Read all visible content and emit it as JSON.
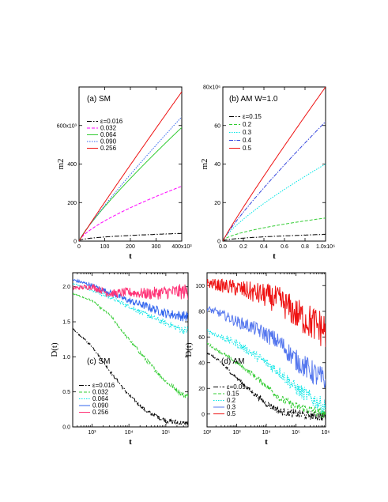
{
  "chart_data": [
    {
      "type": "line",
      "panel_label": "(a)  SM",
      "xlabel": "t",
      "ylabel": "m2",
      "xlim": [
        0,
        400000
      ],
      "ylim": [
        0,
        800000
      ],
      "x_ticks": [
        0,
        100000,
        200000,
        300000,
        400000
      ],
      "x_tick_labels": [
        "0",
        "100",
        "200",
        "300",
        "400x10³"
      ],
      "y_ticks": [
        0,
        200000,
        400000,
        600000
      ],
      "y_tick_labels": [
        "0",
        "200",
        "400",
        "600x10³"
      ],
      "legend_placement": "upper-left",
      "series": [
        {
          "name": "ε=0.016",
          "color": "#000000",
          "dash": "6,2,1.5,2",
          "final": 40000,
          "power": 0.45,
          "noise": 0.04
        },
        {
          "name": "0.032",
          "color": "#ff00ff",
          "dash": "4,2",
          "final": 285000,
          "power": 0.72,
          "noise": 0
        },
        {
          "name": "0.064",
          "color": "#33cc33",
          "dash": "",
          "final": 590000,
          "power": 0.86,
          "noise": 0
        },
        {
          "name": "0.090",
          "color": "#3366ee",
          "dash": "1.5,1.5",
          "final": 645000,
          "power": 0.9,
          "noise": 0
        },
        {
          "name": "0.256",
          "color": "#ee1111",
          "dash": "",
          "final": 775000,
          "power": 0.97,
          "noise": 0
        }
      ]
    },
    {
      "type": "line",
      "panel_label": "(b)  AM  W=1.0",
      "xlabel": "t",
      "ylabel": "m2",
      "xlim": [
        0,
        1000000
      ],
      "ylim": [
        0,
        80000000
      ],
      "x_ticks": [
        0,
        200000,
        400000,
        600000,
        800000,
        1000000
      ],
      "x_tick_labels": [
        "0.0",
        "0.2",
        "0.4",
        "0.6",
        "0.8",
        "1.0x10⁶"
      ],
      "y_ticks": [
        0,
        20000000,
        40000000,
        60000000,
        80000000
      ],
      "y_tick_labels": [
        "0",
        "20",
        "40",
        "60",
        "80x10⁶"
      ],
      "legend_placement": "upper-left",
      "series": [
        {
          "name": "ε=0.15",
          "color": "#000000",
          "dash": "6,2,1.5,2",
          "final": 3500000,
          "power": 0.5,
          "noise": 0.04
        },
        {
          "name": "0.2",
          "color": "#33cc33",
          "dash": "4,2",
          "final": 12000000,
          "power": 0.6,
          "noise": 0
        },
        {
          "name": "0.3",
          "color": "#00e5e5",
          "dash": "1.5,1.5",
          "final": 40000000,
          "power": 0.78,
          "noise": 0
        },
        {
          "name": "0.4",
          "color": "#3344dd",
          "dash": "5,1.5,1.5,1.5",
          "final": 62000000,
          "power": 0.88,
          "noise": 0
        },
        {
          "name": "0.5",
          "color": "#ee1111",
          "dash": "",
          "final": 80000000,
          "power": 0.94,
          "noise": 0
        }
      ]
    },
    {
      "type": "line",
      "panel_label": "(c)  SM",
      "xlabel": "t",
      "ylabel": "D(t)",
      "x_scale": "log",
      "xlim": [
        300,
        400000
      ],
      "ylim": [
        0,
        2.2
      ],
      "x_ticks": [
        1000,
        10000,
        100000
      ],
      "x_tick_labels": [
        "10³",
        "10⁴",
        "10⁵"
      ],
      "y_ticks": [
        0,
        0.5,
        1.0,
        1.5,
        2.0
      ],
      "y_tick_labels": [
        "0.0",
        "0.5",
        "1.0",
        "1.5",
        "2.0"
      ],
      "legend_placement": "lower-left",
      "series": [
        {
          "name": "ε=0.016",
          "color": "#000000",
          "dash": "6,2,1.5,2",
          "x": [
            300,
            1000,
            3000,
            10000,
            30000,
            100000,
            300000
          ],
          "y": [
            1.4,
            1.15,
            0.8,
            0.45,
            0.22,
            0.09,
            0.05
          ],
          "noise": 0.03
        },
        {
          "name": "0.032",
          "color": "#33cc33",
          "dash": "4,2",
          "x": [
            300,
            1000,
            3000,
            10000,
            30000,
            100000,
            300000
          ],
          "y": [
            1.9,
            1.8,
            1.6,
            1.25,
            0.95,
            0.65,
            0.45
          ],
          "noise": 0.03
        },
        {
          "name": "0.064",
          "color": "#00e5e5",
          "dash": "1.5,1.5",
          "x": [
            300,
            1000,
            3000,
            10000,
            30000,
            100000,
            300000
          ],
          "y": [
            2.05,
            1.95,
            1.85,
            1.72,
            1.6,
            1.48,
            1.38
          ],
          "noise": 0.04
        },
        {
          "name": "0.090",
          "color": "#3366ee",
          "dash": "",
          "x": [
            300,
            1000,
            3000,
            10000,
            30000,
            100000,
            300000
          ],
          "y": [
            2.1,
            2.02,
            1.92,
            1.8,
            1.72,
            1.62,
            1.58
          ],
          "noise": 0.06
        },
        {
          "name": "0.256",
          "color": "#ff3377",
          "dash": "",
          "x": [
            300,
            1000,
            3000,
            10000,
            30000,
            100000,
            300000
          ],
          "y": [
            1.98,
            2.0,
            1.9,
            1.92,
            1.9,
            1.92,
            1.93
          ],
          "noise": 0.09
        }
      ]
    },
    {
      "type": "line",
      "panel_label": "(d)  AM",
      "xlabel": "t",
      "ylabel": "D(t)",
      "x_scale": "log",
      "xlim": [
        100,
        1000000
      ],
      "ylim": [
        -10,
        110
      ],
      "x_ticks": [
        100,
        1000,
        10000,
        100000,
        1000000
      ],
      "x_tick_labels": [
        "10²",
        "10³",
        "10⁴",
        "10⁵",
        "10⁶"
      ],
      "y_ticks": [
        0,
        20,
        40,
        60,
        80,
        100
      ],
      "y_tick_labels": [
        "0",
        "20",
        "40",
        "60",
        "80",
        "100"
      ],
      "legend_placement": "lower-left",
      "series": [
        {
          "name": "ε=0.09",
          "color": "#000000",
          "dash": "6,2,1.5,2",
          "x": [
            100,
            300,
            1000,
            3000,
            10000,
            30000,
            100000,
            1000000
          ],
          "y": [
            48,
            40,
            28,
            18,
            8,
            2,
            0,
            -2
          ],
          "noise": 3
        },
        {
          "name": "0.15",
          "color": "#33cc33",
          "dash": "4,2",
          "x": [
            100,
            300,
            1000,
            3000,
            10000,
            30000,
            100000,
            1000000
          ],
          "y": [
            55,
            48,
            40,
            32,
            22,
            12,
            6,
            0
          ],
          "noise": 3
        },
        {
          "name": "0.2",
          "color": "#00e5e5",
          "dash": "1.5,1.5",
          "x": [
            100,
            300,
            1000,
            3000,
            10000,
            30000,
            100000,
            1000000
          ],
          "y": [
            65,
            60,
            55,
            48,
            40,
            32,
            20,
            5
          ],
          "noise": 5
        },
        {
          "name": "0.3",
          "color": "#5577ee",
          "dash": "",
          "x": [
            100,
            300,
            1000,
            3000,
            10000,
            30000,
            100000,
            1000000
          ],
          "y": [
            82,
            78,
            72,
            68,
            62,
            55,
            42,
            25
          ],
          "noise": 8
        },
        {
          "name": "0.5",
          "color": "#ee1111",
          "dash": "",
          "x": [
            100,
            300,
            1000,
            3000,
            10000,
            30000,
            100000,
            1000000
          ],
          "y": [
            102,
            100,
            98,
            95,
            92,
            88,
            78,
            65
          ],
          "noise": 12
        }
      ]
    }
  ]
}
